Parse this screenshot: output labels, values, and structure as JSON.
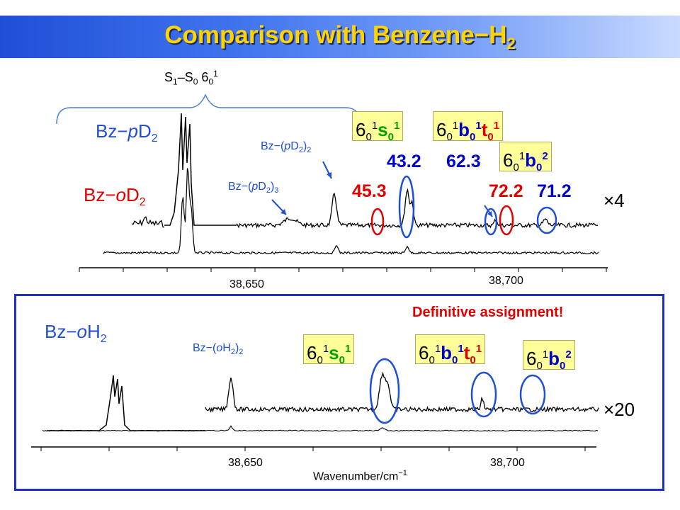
{
  "title_main": "Comparison with Benzene",
  "title_dash": "−",
  "title_h": "H",
  "title_sub": "2",
  "brace_label": {
    "s1": "S",
    "s1_sub": "1",
    "dash": "–S",
    "s0_sub": "0",
    "six": " 6",
    "sixsub": "0",
    "sixsup": "1"
  },
  "upper": {
    "bz_pD2": {
      "prefix": "Bz",
      "dash": "−",
      "italic": "p",
      "D": "D",
      "sub": "2"
    },
    "bz_oD2": {
      "prefix": "Bz",
      "dash": "−",
      "italic": "o",
      "D": "D",
      "sub": "2"
    },
    "bz_pD2_2": {
      "prefix": "Bz",
      "dash": "−",
      "open": "(",
      "italic": "p",
      "D": "D",
      "sub": "2",
      "close": ")",
      "n": "2"
    },
    "bz_pD2_3": {
      "prefix": "Bz",
      "dash": "−",
      "open": "(",
      "italic": "p",
      "D": "D",
      "sub": "2",
      "close": ")",
      "n": "3"
    },
    "scale": "×4",
    "ticks": [
      "38,650",
      "38,700"
    ],
    "values": {
      "v45_3": "45.3",
      "v43_2": "43.2",
      "v62_3": "62.3",
      "v72_2": "72.2",
      "v71_2": "71.2"
    }
  },
  "lower": {
    "bz_oH2": {
      "prefix": "Bz",
      "dash": "−",
      "italic": "o",
      "H": "H",
      "sub": "2"
    },
    "bz_oH2_2": {
      "prefix": "Bz",
      "dash": "−",
      "open": "(",
      "italic": "o",
      "H": "H",
      "sub": "2",
      "close": ")",
      "n": "2"
    },
    "definitive": "Definitive assignment!",
    "scale": "×20",
    "ticks": [
      "38,650",
      "38,700"
    ],
    "xlabel_main": "Wavenumber/cm",
    "xlabel_sup": "−1"
  },
  "boxes": {
    "s_box": {
      "six": "6",
      "sub0": "0",
      "sup1": "1",
      "letter": "s",
      "lsub": "0",
      "lsup": "1"
    },
    "bt_box": {
      "six": "6",
      "sub0": "0",
      "sup1": "1",
      "b": "b",
      "bsub": "0",
      "bsup": "1",
      "t": "t",
      "tsub": "0",
      "tsup": "1"
    },
    "b2_box": {
      "six": "6",
      "sub0": "0",
      "sup1": "1",
      "b": "b",
      "bsub": "0",
      "bsup": "2"
    }
  },
  "chart_data": {
    "type": "line",
    "title": "Comparison with Benzene−H2",
    "xlabel": "Wavenumber/cm−1",
    "ylabel": "",
    "x_ticks": [
      38650,
      38700
    ],
    "panels": [
      {
        "name": "upper",
        "series": [
          "Bz−pD2",
          "Bz−oD2"
        ],
        "scale_label": "×4",
        "peak_annotations_cm-1": [
          45.3,
          43.2,
          62.3,
          72.2,
          71.2
        ]
      },
      {
        "name": "lower",
        "series": [
          "Bz−oH2"
        ],
        "scale_label": "×20"
      }
    ],
    "grid": false
  }
}
